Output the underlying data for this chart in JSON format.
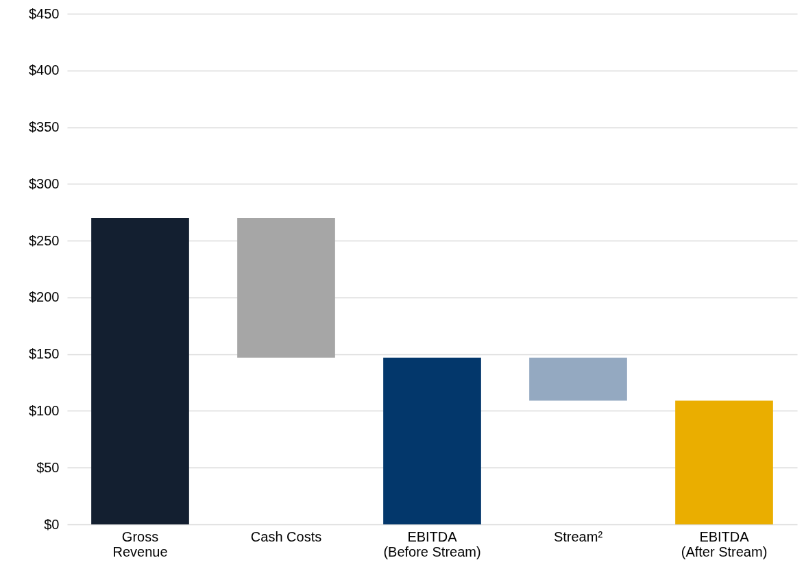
{
  "chart_data": {
    "type": "bar",
    "categories": [
      "Gross Revenue",
      "Cash Costs",
      "EBITDA (Before Stream)",
      "Stream²",
      "EBITDA (After Stream)"
    ],
    "values": [
      270,
      123,
      147,
      38,
      109
    ],
    "base": [
      0,
      147,
      0,
      109,
      0
    ],
    "colors": [
      "#131f30",
      "#a6a6a6",
      "#03376b",
      "#94a9c1",
      "#eaae00"
    ],
    "ylim": [
      0,
      450
    ],
    "yticks": [
      {
        "value": 0,
        "label": "$0"
      },
      {
        "value": 50,
        "label": "$50"
      },
      {
        "value": 100,
        "label": "$100"
      },
      {
        "value": 150,
        "label": "$150"
      },
      {
        "value": 200,
        "label": "$200"
      },
      {
        "value": 250,
        "label": "$250"
      },
      {
        "value": 300,
        "label": "$300"
      },
      {
        "value": 350,
        "label": "$350"
      },
      {
        "value": 400,
        "label": "$400"
      },
      {
        "value": 450,
        "label": "$450"
      }
    ],
    "grid": "y"
  }
}
